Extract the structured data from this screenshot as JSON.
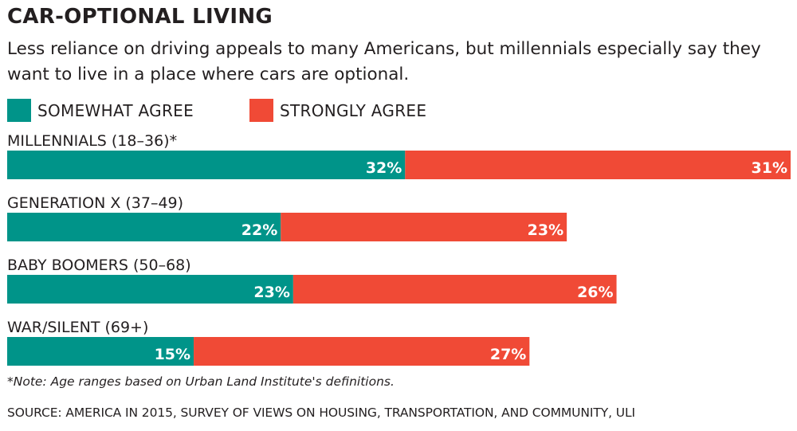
{
  "header": {
    "title": "CAR-OPTIONAL LIVING",
    "subtitle": "Less reliance on driving appeals to many Americans, but millennials especially say they want to live in a place where cars are optional."
  },
  "colors": {
    "somewhat": "#009489",
    "strongly": "#f04a36"
  },
  "chart_data": {
    "type": "bar",
    "orientation": "horizontal",
    "stacked": true,
    "title": "CAR-OPTIONAL LIVING",
    "categories": [
      "MILLENNIALS (18–36)*",
      "GENERATION X (37–49)",
      "BABY BOOMERS (50–68)",
      "WAR/SILENT (69+)"
    ],
    "series": [
      {
        "name": "SOMEWHAT AGREE",
        "values": [
          32,
          22,
          23,
          15
        ],
        "labels": [
          "32%",
          "22%",
          "23%",
          "15%"
        ]
      },
      {
        "name": "STRONGLY AGREE",
        "values": [
          31,
          23,
          26,
          27
        ],
        "labels": [
          "31%",
          "23%",
          "26%",
          "27%"
        ]
      }
    ],
    "xlim": [
      0,
      63
    ],
    "xlabel": "",
    "ylabel": "",
    "grid": false,
    "legend_position": "top-left",
    "unit": "%"
  },
  "footer": {
    "note": "*Note: Age ranges based on Urban Land Institute's definitions.",
    "source": "SOURCE: AMERICA IN 2015, SURVEY OF VIEWS ON HOUSING, TRANSPORTATION, AND COMMUNITY, ULI"
  }
}
